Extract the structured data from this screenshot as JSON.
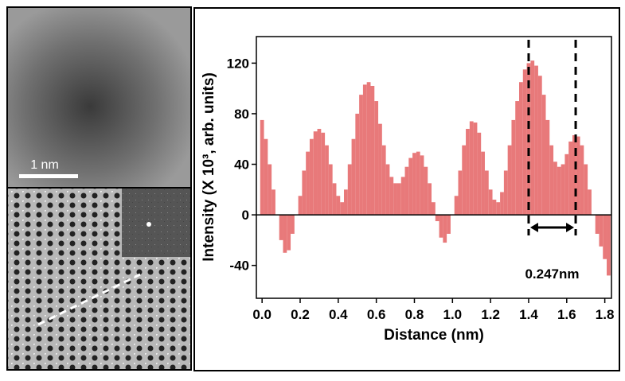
{
  "scale_bar_label": "1 nm",
  "chart_data": {
    "type": "bar",
    "color": "#e8797a",
    "x_label": "Distance (nm)",
    "y_label": "Intensity (X 10³, arb. units)",
    "xlim": [
      -0.03,
      1.835
    ],
    "ylim": [
      -66,
      141
    ],
    "xticks": [
      {
        "value": 0,
        "label": "0.0"
      },
      0.2,
      0.4,
      0.6,
      0.8,
      {
        "value": 1,
        "label": "1.0"
      },
      1.2,
      1.4,
      1.6,
      1.8
    ],
    "yticks": [
      -40,
      0,
      40,
      80,
      120
    ],
    "x": [
      0,
      0.02,
      0.04,
      0.06,
      0.08,
      0.1,
      0.12,
      0.14,
      0.16,
      0.18,
      0.2,
      0.22,
      0.24,
      0.26,
      0.28,
      0.3,
      0.32,
      0.34,
      0.36,
      0.38,
      0.4,
      0.42,
      0.44,
      0.46,
      0.48,
      0.5,
      0.52,
      0.54,
      0.56,
      0.58,
      0.6,
      0.62,
      0.64,
      0.66,
      0.68,
      0.7,
      0.72,
      0.74,
      0.76,
      0.78,
      0.8,
      0.82,
      0.84,
      0.86,
      0.88,
      0.9,
      0.92,
      0.94,
      0.96,
      0.98,
      1,
      1.02,
      1.04,
      1.06,
      1.08,
      1.1,
      1.12,
      1.14,
      1.16,
      1.18,
      1.2,
      1.22,
      1.24,
      1.26,
      1.28,
      1.3,
      1.32,
      1.34,
      1.36,
      1.38,
      1.4,
      1.42,
      1.44,
      1.46,
      1.48,
      1.5,
      1.52,
      1.54,
      1.56,
      1.58,
      1.6,
      1.62,
      1.64,
      1.66,
      1.68,
      1.7,
      1.72,
      1.74,
      1.76,
      1.78,
      1.8,
      1.82
    ],
    "values": [
      75,
      60,
      40,
      20,
      0,
      -20,
      -30,
      -28,
      -15,
      0,
      15,
      35,
      50,
      60,
      66,
      68,
      65,
      55,
      40,
      25,
      15,
      10,
      20,
      40,
      60,
      80,
      95,
      103,
      105,
      102,
      90,
      72,
      55,
      40,
      30,
      25,
      25,
      30,
      38,
      45,
      49,
      50,
      47,
      38,
      25,
      10,
      -5,
      -18,
      -22,
      -15,
      0,
      15,
      35,
      55,
      68,
      74,
      73,
      65,
      50,
      35,
      20,
      12,
      10,
      18,
      35,
      55,
      75,
      90,
      105,
      115,
      120,
      122,
      118,
      110,
      95,
      75,
      55,
      42,
      38,
      40,
      48,
      58,
      63,
      62,
      55,
      40,
      20,
      0,
      -15,
      -25,
      -35,
      -48
    ],
    "annotation": {
      "text": "0.247nm",
      "x_start": 1.4,
      "x_end": 1.647,
      "y": -10
    }
  }
}
